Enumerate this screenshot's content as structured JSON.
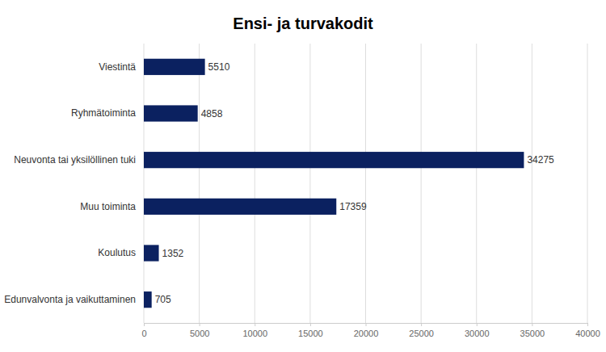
{
  "chart_data": {
    "type": "bar",
    "title": "Ensi- ja turvakodit",
    "orientation": "horizontal",
    "categories": [
      "Viestintä",
      "Ryhmätoiminta",
      "Neuvonta tai yksilöllinen tuki",
      "Muu toiminta",
      "Koulutus",
      "Edunvalvonta ja vaikuttaminen"
    ],
    "values": [
      5510,
      4858,
      34275,
      17359,
      1352,
      705
    ],
    "color": "#0b2160",
    "xlim": [
      0,
      40000
    ],
    "xticks": [
      0,
      5000,
      10000,
      15000,
      20000,
      25000,
      30000,
      35000,
      40000
    ],
    "grid": true,
    "data_labels": true
  }
}
